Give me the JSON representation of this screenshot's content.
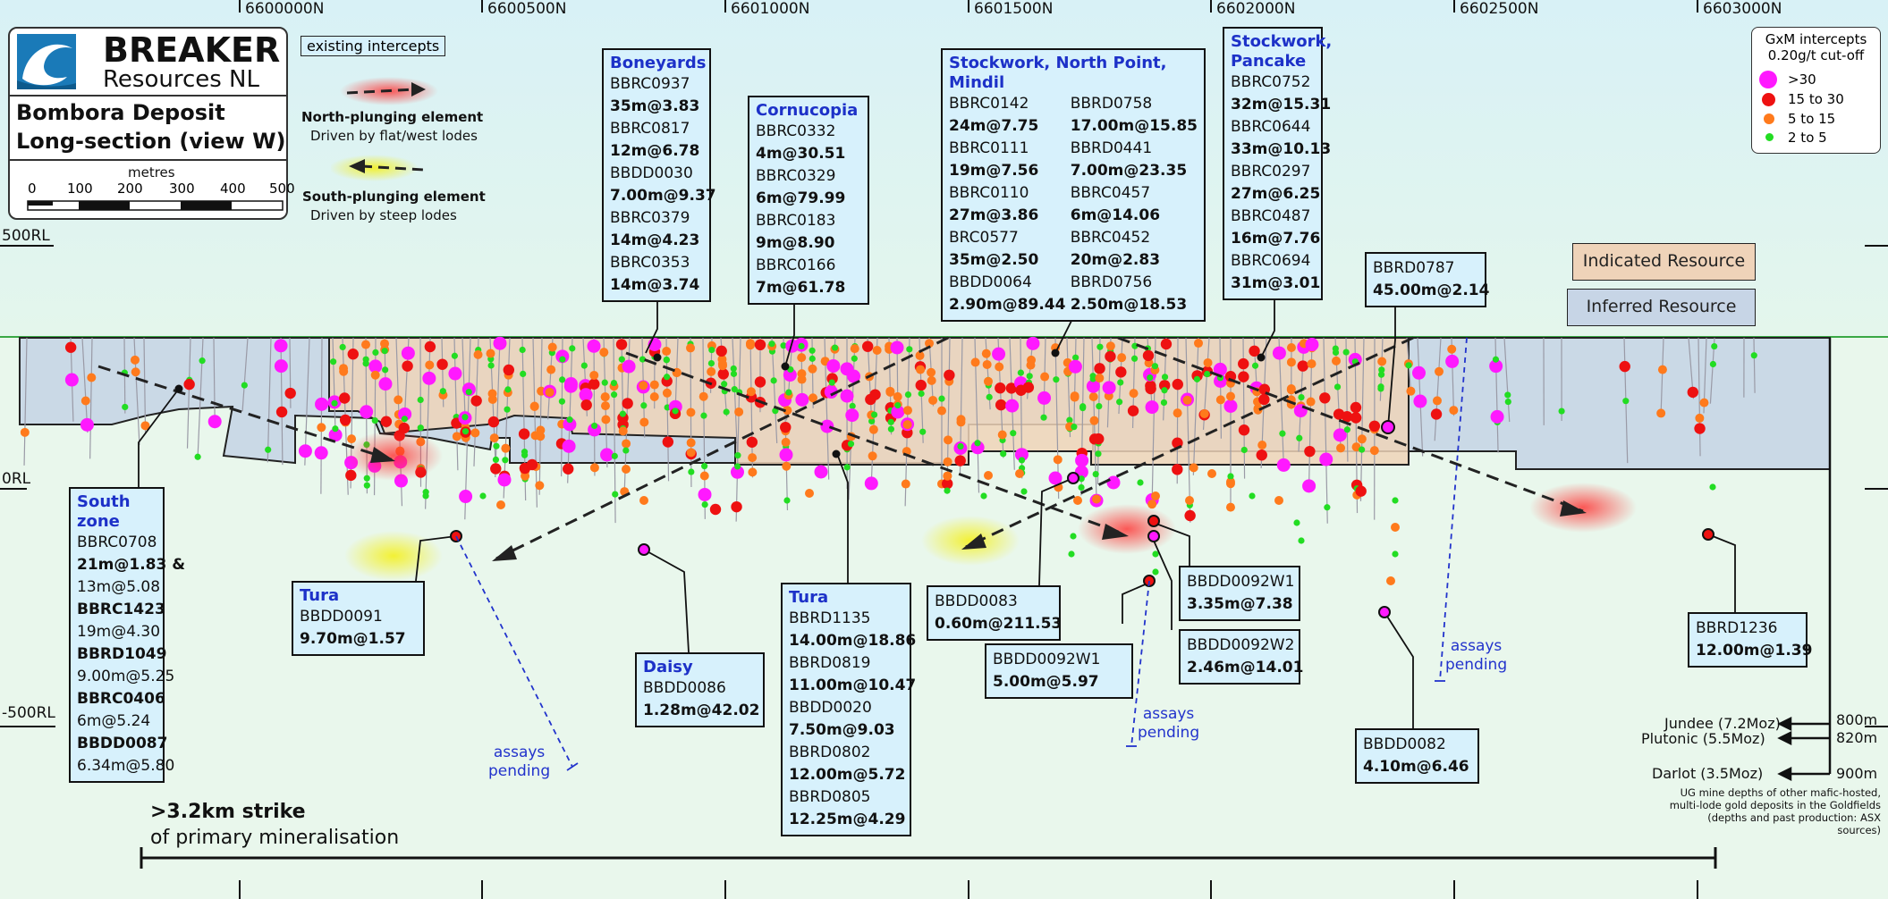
{
  "northings": [
    "6600000N",
    "6600500N",
    "6601000N",
    "6601500N",
    "6602000N",
    "6602500N",
    "6603000N"
  ],
  "rl_labels": [
    "500RL",
    "0RL",
    "-500RL"
  ],
  "logo": {
    "line1": "BREAKER",
    "line2": "Resources NL"
  },
  "deposit_title": [
    "Bombora Deposit",
    "Long-section (view W)"
  ],
  "scale": {
    "unit": "metres",
    "ticks": [
      "0",
      "100",
      "200",
      "300",
      "400",
      "500"
    ]
  },
  "legend_top": {
    "existing": "existing intercepts",
    "north_title": "North-plunging element",
    "north_sub": "Driven by flat/west lodes",
    "south_title": "South-plunging element",
    "south_sub": "Driven by steep lodes"
  },
  "gxm_legend": {
    "title1": "GxM intercepts",
    "title2": "0.20g/t cut-off",
    "items": [
      {
        "label": ">30",
        "color": "#ff19ff"
      },
      {
        "label": "15 to 30",
        "color": "#ee1111"
      },
      {
        "label": "5 to 15",
        "color": "#ff7a1c"
      },
      {
        "label": "2 to 5",
        "color": "#22dd22"
      }
    ]
  },
  "resources": {
    "indicated": "Indicated Resource",
    "inferred": "Inferred Resource"
  },
  "callouts": {
    "boneyards": {
      "title": "Boneyards",
      "rows": [
        "BBRC0937",
        "35m@3.83",
        "BBRC0817",
        "12m@6.78",
        "BBDD0030",
        "7.00m@9.37",
        "BBRC0379",
        "14m@4.23",
        "BBRC0353",
        "14m@3.74"
      ]
    },
    "cornucopia": {
      "title": "Cornucopia",
      "rows": [
        "BBRC0332",
        "4m@30.51",
        "BBRC0329",
        "6m@79.99",
        "BBRC0183",
        "9m@8.90",
        "BBRC0166",
        "7m@61.78"
      ]
    },
    "stockwork_np": {
      "title": "Stockwork, North Point, Mindil",
      "col1": [
        "BBRC0142",
        "24m@7.75",
        "BBRC0111",
        "19m@7.56",
        "BBRC0110",
        "27m@3.86",
        "BRC0577",
        "35m@2.50",
        "BBDD0064",
        "2.90m@89.44"
      ],
      "col2": [
        "BBRD0758",
        "17.00m@15.85",
        "BBRD0441",
        "7.00m@23.35",
        "BBRC0457",
        "6m@14.06",
        "BBRC0452",
        "20m@2.83",
        "BBRD0756",
        "2.50m@18.53"
      ]
    },
    "stockwork_pancake": {
      "title": "Stockwork, Pancake",
      "rows": [
        "BBRC0752",
        "32m@15.31",
        "BBRC0644",
        "33m@10.13",
        "BBRC0297",
        "27m@6.25",
        "BBRC0487",
        "16m@7.76",
        "BBRC0694",
        "31m@3.01"
      ]
    },
    "bbrd0787": {
      "rows": [
        "BBRD0787",
        "45.00m@2.14"
      ]
    },
    "south_zone": {
      "title": "South zone",
      "rows": [
        "BBRC0708",
        "21m@1.83 &",
        "13m@5.08",
        "BBRC1423",
        "19m@4.30",
        "BBRD1049",
        "9.00m@5.25",
        "BBRC0406",
        "6m@5.24",
        "BBDD0087",
        "6.34m@5.80"
      ]
    },
    "tura1": {
      "title": "Tura",
      "rows": [
        "BBDD0091",
        "9.70m@1.57"
      ]
    },
    "daisy": {
      "title": "Daisy",
      "rows": [
        "BBDD0086",
        "1.28m@42.02"
      ]
    },
    "tura2": {
      "title": "Tura",
      "rows": [
        "BBRD1135",
        "14.00m@18.86",
        "BBRD0819",
        "11.00m@10.47",
        "BBDD0020",
        "7.50m@9.03",
        "BBRD0802",
        "12.00m@5.72",
        "BBRD0805",
        "12.25m@4.29"
      ]
    },
    "bbdd0083": {
      "rows": [
        "BBDD0083",
        "0.60m@211.53"
      ]
    },
    "w1a": {
      "rows": [
        "BBDD0092W1",
        "3.35m@7.38"
      ]
    },
    "w2": {
      "rows": [
        "BBDD0092W2",
        "2.46m@14.01"
      ]
    },
    "w1b": {
      "rows": [
        "BBDD0092W1",
        "5.00m@5.97"
      ]
    },
    "bbdd0082": {
      "rows": [
        "BBDD0082",
        "4.10m@6.46"
      ]
    },
    "bbrd1236": {
      "rows": [
        "BBRD1236",
        "12.00m@1.39"
      ]
    }
  },
  "assays_pending": [
    "assays",
    "pending"
  ],
  "strike": {
    "line1": ">3.2km strike",
    "line2": "of primary mineralisation"
  },
  "mines": [
    {
      "name": "Jundee (7.2Moz)",
      "depth": "800m"
    },
    {
      "name": "Plutonic (5.5Moz)",
      "depth": "820m"
    },
    {
      "name": "Darlot (3.5Moz)",
      "depth": "900m"
    }
  ],
  "mine_note": [
    "UG mine depths of other mafic-hosted,",
    "multi-lode gold deposits in the Goldfields",
    "(depths and past production: ASX sources)"
  ]
}
